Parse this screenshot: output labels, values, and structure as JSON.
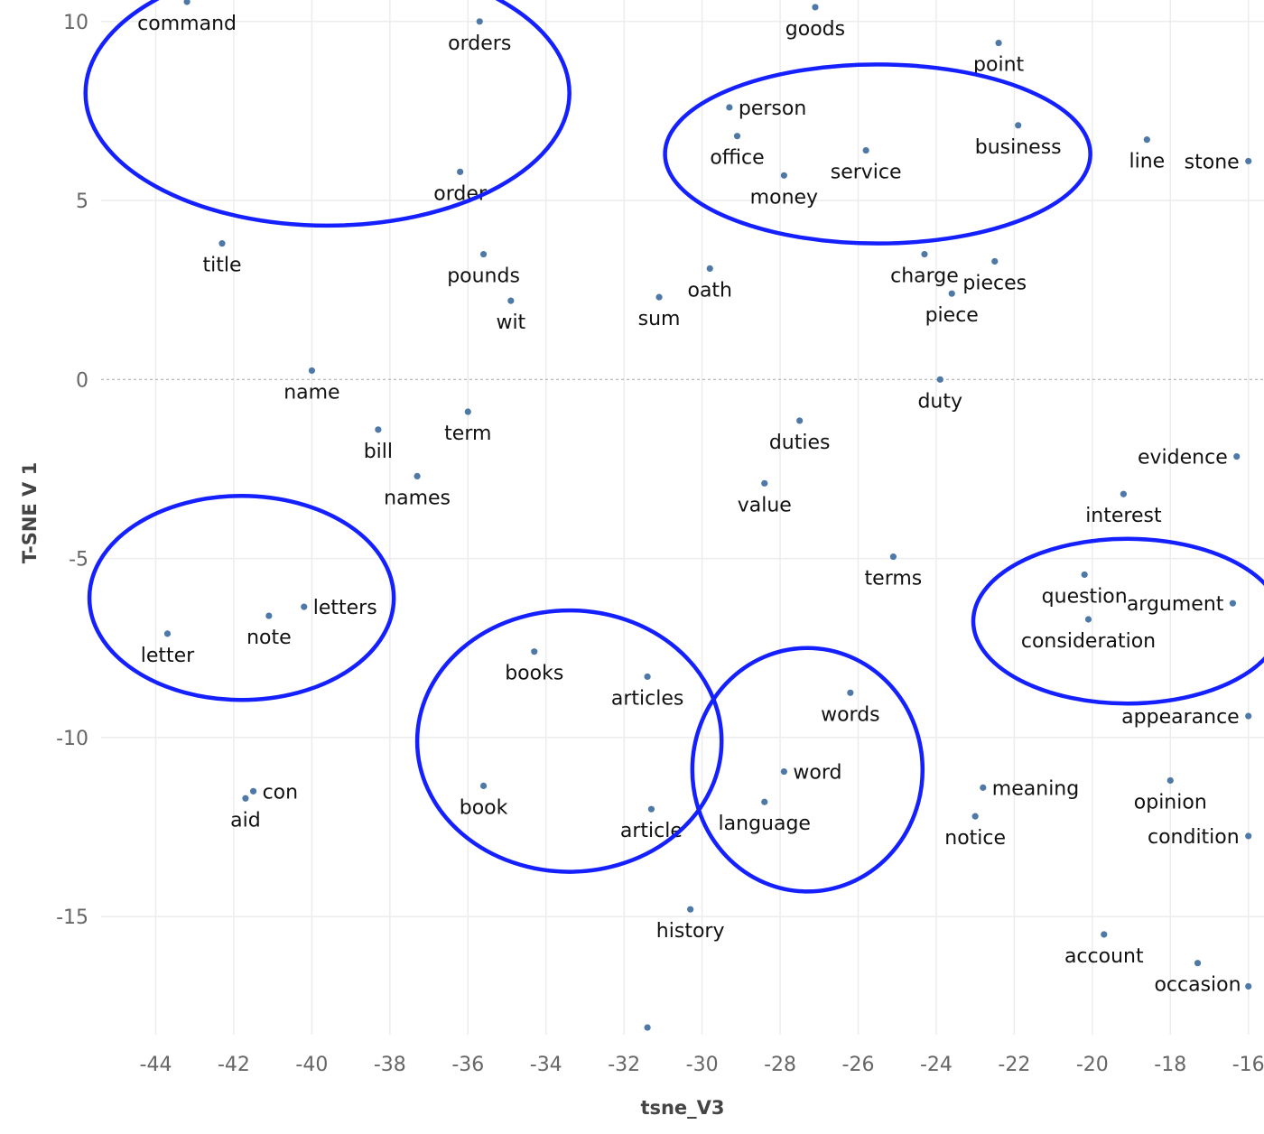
{
  "chart_data": {
    "type": "scatter",
    "xlabel": "tsne_V3",
    "ylabel": "T-SNE V  1",
    "xlim": [
      -45.4,
      -15.6
    ],
    "ylim": [
      -18.3,
      10.6
    ],
    "x_ticks": [
      -44,
      -42,
      -40,
      -38,
      -36,
      -34,
      -32,
      -30,
      -28,
      -26,
      -24,
      -22,
      -20,
      -18,
      -16
    ],
    "y_ticks": [
      10,
      5,
      0,
      -5,
      -10,
      -15
    ],
    "grid": true,
    "zero_line": "dashed",
    "point_color": "#4e79a7",
    "highlight_color": "#1420ff",
    "points": [
      {
        "label": "command",
        "x": -43.2,
        "y": 10.55,
        "pos": "below"
      },
      {
        "label": "orders",
        "x": -35.7,
        "y": 10.0,
        "pos": "below"
      },
      {
        "label": "goods",
        "x": -27.1,
        "y": 10.4,
        "pos": "below"
      },
      {
        "label": "point",
        "x": -22.4,
        "y": 9.4,
        "pos": "below"
      },
      {
        "label": "person",
        "x": -29.3,
        "y": 7.6,
        "pos": "right"
      },
      {
        "label": "office",
        "x": -29.1,
        "y": 6.8,
        "pos": "below"
      },
      {
        "label": "business",
        "x": -21.9,
        "y": 7.1,
        "pos": "below"
      },
      {
        "label": "service",
        "x": -25.8,
        "y": 6.4,
        "pos": "below"
      },
      {
        "label": "money",
        "x": -27.9,
        "y": 5.7,
        "pos": "below"
      },
      {
        "label": "line",
        "x": -18.6,
        "y": 6.7,
        "pos": "below"
      },
      {
        "label": "stone",
        "x": -16.0,
        "y": 6.1,
        "pos": "left"
      },
      {
        "label": "order",
        "x": -36.2,
        "y": 5.8,
        "pos": "below"
      },
      {
        "label": "title",
        "x": -42.3,
        "y": 3.8,
        "pos": "below"
      },
      {
        "label": "pounds",
        "x": -35.6,
        "y": 3.5,
        "pos": "below"
      },
      {
        "label": "charge",
        "x": -24.3,
        "y": 3.5,
        "pos": "below"
      },
      {
        "label": "pieces",
        "x": -22.5,
        "y": 3.3,
        "pos": "below"
      },
      {
        "label": "oath",
        "x": -29.8,
        "y": 3.1,
        "pos": "below"
      },
      {
        "label": "sum",
        "x": -31.1,
        "y": 2.3,
        "pos": "below"
      },
      {
        "label": "piece",
        "x": -23.6,
        "y": 2.4,
        "pos": "below"
      },
      {
        "label": "wit",
        "x": -34.9,
        "y": 2.2,
        "pos": "below"
      },
      {
        "label": "name",
        "x": -40.0,
        "y": 0.25,
        "pos": "below"
      },
      {
        "label": "duty",
        "x": -23.9,
        "y": 0.0,
        "pos": "below"
      },
      {
        "label": "term",
        "x": -36.0,
        "y": -0.9,
        "pos": "below"
      },
      {
        "label": "bill",
        "x": -38.3,
        "y": -1.4,
        "pos": "below"
      },
      {
        "label": "duties",
        "x": -27.5,
        "y": -1.15,
        "pos": "below"
      },
      {
        "label": "evidence",
        "x": -16.3,
        "y": -2.15,
        "pos": "left"
      },
      {
        "label": "names",
        "x": -37.3,
        "y": -2.7,
        "pos": "below"
      },
      {
        "label": "value",
        "x": -28.4,
        "y": -2.9,
        "pos": "below"
      },
      {
        "label": "interest",
        "x": -19.2,
        "y": -3.2,
        "pos": "below"
      },
      {
        "label": "terms",
        "x": -25.1,
        "y": -4.95,
        "pos": "below"
      },
      {
        "label": "question",
        "x": -20.2,
        "y": -5.45,
        "pos": "below"
      },
      {
        "label": "letters",
        "x": -40.2,
        "y": -6.35,
        "pos": "right"
      },
      {
        "label": "argument",
        "x": -16.4,
        "y": -6.25,
        "pos": "left"
      },
      {
        "label": "note",
        "x": -41.1,
        "y": -6.6,
        "pos": "below"
      },
      {
        "label": "consideration",
        "x": -20.1,
        "y": -6.7,
        "pos": "below"
      },
      {
        "label": "letter",
        "x": -43.7,
        "y": -7.1,
        "pos": "below"
      },
      {
        "label": "books",
        "x": -34.3,
        "y": -7.6,
        "pos": "below"
      },
      {
        "label": "articles",
        "x": -31.4,
        "y": -8.3,
        "pos": "below"
      },
      {
        "label": "words",
        "x": -26.2,
        "y": -8.75,
        "pos": "below"
      },
      {
        "label": "appearance",
        "x": -16.0,
        "y": -9.4,
        "pos": "left"
      },
      {
        "label": "word",
        "x": -27.9,
        "y": -10.95,
        "pos": "right"
      },
      {
        "label": "opinion",
        "x": -18.0,
        "y": -11.2,
        "pos": "below"
      },
      {
        "label": "book",
        "x": -35.6,
        "y": -11.35,
        "pos": "below"
      },
      {
        "label": "con",
        "x": -41.5,
        "y": -11.5,
        "pos": "right"
      },
      {
        "label": "meaning",
        "x": -22.8,
        "y": -11.4,
        "pos": "right"
      },
      {
        "label": "aid",
        "x": -41.7,
        "y": -11.7,
        "pos": "below"
      },
      {
        "label": "language",
        "x": -28.4,
        "y": -11.8,
        "pos": "below"
      },
      {
        "label": "article",
        "x": -31.3,
        "y": -12.0,
        "pos": "below"
      },
      {
        "label": "notice",
        "x": -23.0,
        "y": -12.2,
        "pos": "below"
      },
      {
        "label": "condition",
        "x": -16.0,
        "y": -12.75,
        "pos": "left"
      },
      {
        "label": "history",
        "x": -30.3,
        "y": -14.8,
        "pos": "below"
      },
      {
        "label": "account",
        "x": -19.7,
        "y": -15.5,
        "pos": "below"
      },
      {
        "label": "occasion",
        "x": -17.3,
        "y": -16.3,
        "pos": "below"
      },
      {
        "label": "",
        "x": -16.0,
        "y": -16.95,
        "pos": "none"
      },
      {
        "label": "",
        "x": -31.4,
        "y": -18.1,
        "pos": "none"
      }
    ],
    "highlights": [
      {
        "cx": -39.6,
        "cy": 8.0,
        "rx": 6.2,
        "ry": 3.7
      },
      {
        "cx": -25.5,
        "cy": 6.3,
        "rx": 5.45,
        "ry": 2.5
      },
      {
        "cx": -41.8,
        "cy": -6.1,
        "rx": 3.9,
        "ry": 2.85
      },
      {
        "cx": -33.4,
        "cy": -10.1,
        "rx": 3.9,
        "ry": 3.65
      },
      {
        "cx": -27.3,
        "cy": -10.9,
        "rx": 2.95,
        "ry": 3.4
      },
      {
        "cx": -19.1,
        "cy": -6.75,
        "rx": 3.95,
        "ry": 2.3
      }
    ]
  }
}
